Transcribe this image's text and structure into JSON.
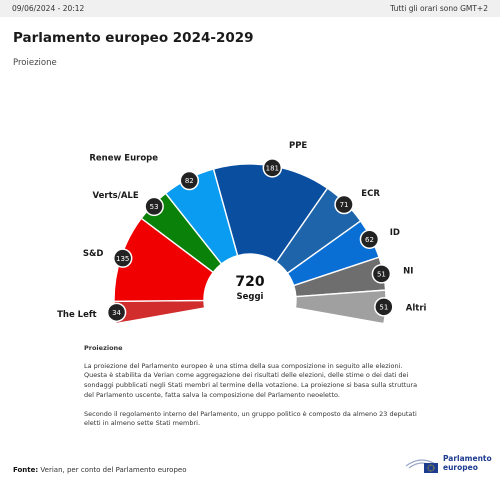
{
  "header": {
    "datetime": "09/06/2024 - 20:12",
    "timezone": "Tutti gli orari sono GMT+2"
  },
  "title": "Parlamento europeo 2024-2029",
  "subtitle": "Proiezione",
  "chart_data": {
    "type": "parliament",
    "total": 720,
    "total_label": "Seggi",
    "series": [
      {
        "name": "The Left",
        "seats": 34,
        "color": "#d22d2d"
      },
      {
        "name": "S&D",
        "seats": 135,
        "color": "#f00000"
      },
      {
        "name": "Verts/ALE",
        "seats": 53,
        "color": "#0a820a"
      },
      {
        "name": "Renew Europe",
        "seats": 82,
        "color": "#0a9cf0"
      },
      {
        "name": "PPE",
        "seats": 181,
        "color": "#0a4ea0"
      },
      {
        "name": "ECR",
        "seats": 71,
        "color": "#1e64aa"
      },
      {
        "name": "ID",
        "seats": 62,
        "color": "#0a6fd4"
      },
      {
        "name": "NI",
        "seats": 51,
        "color": "#6e6e6e"
      },
      {
        "name": "Altri",
        "seats": 51,
        "color": "#a0a0a0"
      }
    ]
  },
  "note": {
    "title": "Proiezione",
    "paragraph1": "La proiezione del Parlamento europeo è una stima della sua composizione in seguito alle elezioni. Questa è stabilita da Verian come aggregazione dei risultati delle elezioni, delle stime o dei dati dei sondaggi pubblicati negli Stati membri al termine della votazione. La proiezione si basa sulla struttura del Parlamento uscente, fatta salva la composizione del Parlamento neoeletto.",
    "paragraph2": "Secondo il regolamento interno del Parlamento, un gruppo politico è composto da almeno 23 deputati eletti in almeno sette Stati membri."
  },
  "source": {
    "label": "Fonte:",
    "text": "Verian, per conto del Parlamento europeo"
  },
  "logo": {
    "line1": "Parlamento",
    "line2": "europeo",
    "color": "#1d3c8f"
  }
}
